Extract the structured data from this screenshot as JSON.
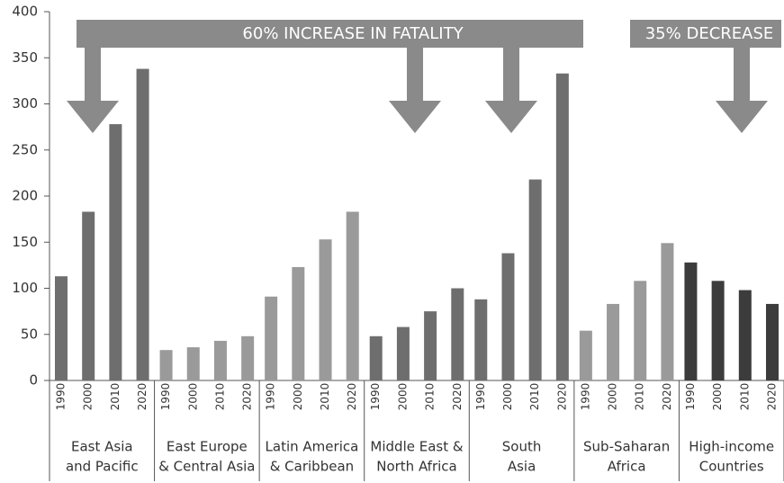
{
  "chart_data": {
    "type": "bar",
    "annotations": [
      "60% INCREASE IN FATALITY",
      "35% DECREASE"
    ],
    "subcategories": [
      "1990",
      "2000",
      "2010",
      "2020"
    ],
    "groups": [
      {
        "name": [
          "East Asia",
          "and Pacific"
        ],
        "color": "#6e6e6e",
        "values": [
          113,
          183,
          278,
          338
        ]
      },
      {
        "name": [
          "East Europe",
          "& Central Asia"
        ],
        "color": "#9a9a9a",
        "values": [
          33,
          36,
          43,
          48
        ]
      },
      {
        "name": [
          "Latin America",
          "& Caribbean"
        ],
        "color": "#9a9a9a",
        "values": [
          91,
          123,
          153,
          183
        ]
      },
      {
        "name": [
          "Middle East &",
          "North Africa"
        ],
        "color": "#6e6e6e",
        "values": [
          48,
          58,
          75,
          100
        ]
      },
      {
        "name": [
          "South",
          "Asia"
        ],
        "color": "#6e6e6e",
        "values": [
          88,
          138,
          218,
          333
        ]
      },
      {
        "name": [
          "Sub-Saharan",
          "Africa"
        ],
        "color": "#9a9a9a",
        "values": [
          54,
          83,
          108,
          149
        ]
      },
      {
        "name": [
          "High-income",
          "Countries"
        ],
        "color": "#3c3c3c",
        "values": [
          128,
          108,
          98,
          83
        ]
      }
    ],
    "ylim": [
      0,
      400
    ],
    "yticks": [
      0,
      50,
      100,
      150,
      200,
      250,
      300,
      350,
      400
    ]
  }
}
